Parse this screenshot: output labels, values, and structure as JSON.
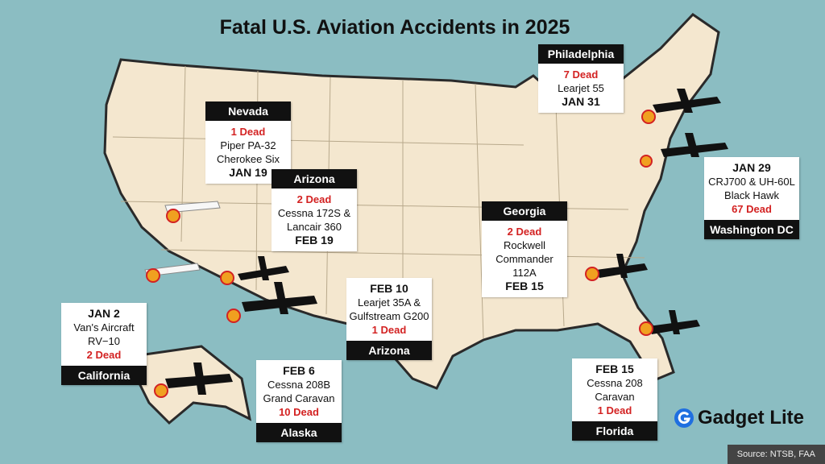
{
  "title": "Fatal U.S. Aviation Accidents in 2025",
  "callouts": [
    {
      "place": "Philadelphia",
      "deaths": "7 Dead",
      "aircraft": [
        "Learjet 55"
      ],
      "date": "JAN 31"
    },
    {
      "place": "Nevada",
      "deaths": "1 Dead",
      "aircraft": [
        "Piper PA-32",
        "Cherokee Six"
      ],
      "date": "JAN 19"
    },
    {
      "place": "Arizona",
      "deaths": "2 Dead",
      "aircraft": [
        "Cessna 172S &",
        "Lancair 360"
      ],
      "date": "FEB 19"
    },
    {
      "place": "Washington DC",
      "deaths": "67 Dead",
      "aircraft": [
        "CRJ700 & UH-60L",
        "Black Hawk"
      ],
      "date": "JAN 29"
    },
    {
      "place": "Georgia",
      "deaths": "2 Dead",
      "aircraft": [
        "Rockwell",
        "Commander 112A"
      ],
      "date": "FEB 15"
    },
    {
      "place": "Arizona",
      "deaths": "1 Dead",
      "aircraft": [
        "Learjet 35A &",
        "Gulfstream G200"
      ],
      "date": "FEB 10"
    },
    {
      "place": "California",
      "deaths": "2 Dead",
      "aircraft": [
        "Van's Aircraft",
        "RV−10"
      ],
      "date": "JAN 2"
    },
    {
      "place": "Alaska",
      "deaths": "10 Dead",
      "aircraft": [
        "Cessna 208B",
        "Grand Caravan"
      ],
      "date": "FEB 6"
    },
    {
      "place": "Florida",
      "deaths": "1 Dead",
      "aircraft": [
        "Cessna 208",
        "Caravan"
      ],
      "date": "FEB 15"
    }
  ],
  "brand": "Gadget Lite",
  "source": "Source: NTSB, FAA"
}
